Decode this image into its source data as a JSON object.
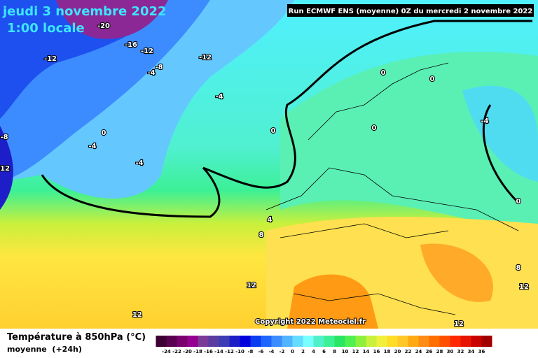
{
  "header": {
    "date": "jeudi 3 novembre 2022",
    "time": "1:00 locale",
    "run": "Run ECMWF ENS (moyenne) 0Z du mercredi 2 novembre 2022"
  },
  "map": {
    "contour_labels": [
      -20,
      -16,
      -12,
      -12,
      -12,
      -8,
      -4,
      -4,
      -4,
      -4,
      -4,
      -8,
      -12,
      0,
      0,
      0,
      0,
      0,
      0,
      4,
      8,
      8,
      12,
      12,
      12,
      12
    ]
  },
  "copyright": "Copyright 2022 Meteociel.fr",
  "legend": {
    "title": "Température à 850hPa (°C)",
    "subtitle": "moyenne  (+24h)",
    "labels": [
      -24,
      -22,
      -20,
      -18,
      -16,
      -14,
      -12,
      -10,
      -8,
      -6,
      -4,
      -2,
      0,
      2,
      4,
      6,
      8,
      10,
      12,
      14,
      16,
      18,
      20,
      22,
      24,
      26,
      28,
      30,
      32,
      34,
      36
    ]
  }
}
